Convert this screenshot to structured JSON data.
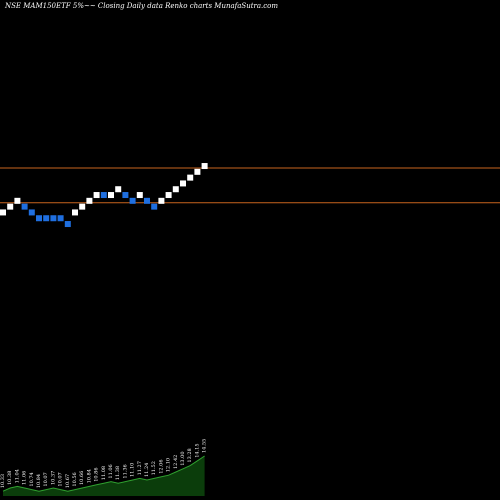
{
  "chart_data": {
    "type": "renko",
    "title": "NSE MAM150ETF 5%~~ Closing Daily data Renko charts MunafaSutra.com",
    "levels": {
      "upper_line": 241.0,
      "lower_line": 232.0,
      "line_color": "#c8641e"
    },
    "colors": {
      "up_brick": "#ffffff",
      "down_brick": "#1f6fe0",
      "volume_fill": "#0b3d0b",
      "volume_line": "#2fa02f"
    },
    "bricks": [
      {
        "close": 229.5,
        "dir": "up"
      },
      {
        "close": 231.0,
        "dir": "up"
      },
      {
        "close": 232.5,
        "dir": "up"
      },
      {
        "close": 231.0,
        "dir": "down"
      },
      {
        "close": 229.5,
        "dir": "down"
      },
      {
        "close": 228.0,
        "dir": "down"
      },
      {
        "close": 228.0,
        "dir": "down"
      },
      {
        "close": 228.0,
        "dir": "down"
      },
      {
        "close": 228.0,
        "dir": "down"
      },
      {
        "close": 226.5,
        "dir": "down"
      },
      {
        "close": 229.5,
        "dir": "up"
      },
      {
        "close": 231.0,
        "dir": "up"
      },
      {
        "close": 232.5,
        "dir": "up"
      },
      {
        "close": 234.0,
        "dir": "up"
      },
      {
        "close": 234.0,
        "dir": "down"
      },
      {
        "close": 234.0,
        "dir": "up"
      },
      {
        "close": 235.5,
        "dir": "up"
      },
      {
        "close": 234.0,
        "dir": "down"
      },
      {
        "close": 232.5,
        "dir": "down"
      },
      {
        "close": 234.0,
        "dir": "up"
      },
      {
        "close": 232.5,
        "dir": "down"
      },
      {
        "close": 231.0,
        "dir": "down"
      },
      {
        "close": 232.5,
        "dir": "up"
      },
      {
        "close": 234.0,
        "dir": "up"
      },
      {
        "close": 235.5,
        "dir": "up"
      },
      {
        "close": 237.0,
        "dir": "up"
      },
      {
        "close": 238.5,
        "dir": "up"
      },
      {
        "close": 240.0,
        "dir": "up"
      },
      {
        "close": 241.5,
        "dir": "up"
      }
    ],
    "volume": [
      3,
      5,
      6,
      5,
      4,
      3,
      4,
      5,
      4,
      3,
      4,
      5,
      6,
      7,
      8,
      9,
      8,
      9,
      10,
      11,
      10,
      11,
      12,
      13,
      15,
      17,
      19,
      22,
      25
    ],
    "volume_labels": [
      "10.33",
      "10.38",
      "11.04",
      "11.06",
      "10.74",
      "10.84",
      "10.07",
      "10.37",
      "10.07",
      "10.67",
      "10.56",
      "10.66",
      "10.84",
      "10.86",
      "11.08",
      "11.06",
      "11.38",
      "11.36",
      "11.10",
      "11.27",
      "11.24",
      "11.52",
      "12.06",
      "12.10",
      "12.42",
      "13.00",
      "13.28",
      "14.15",
      "14.55"
    ]
  }
}
